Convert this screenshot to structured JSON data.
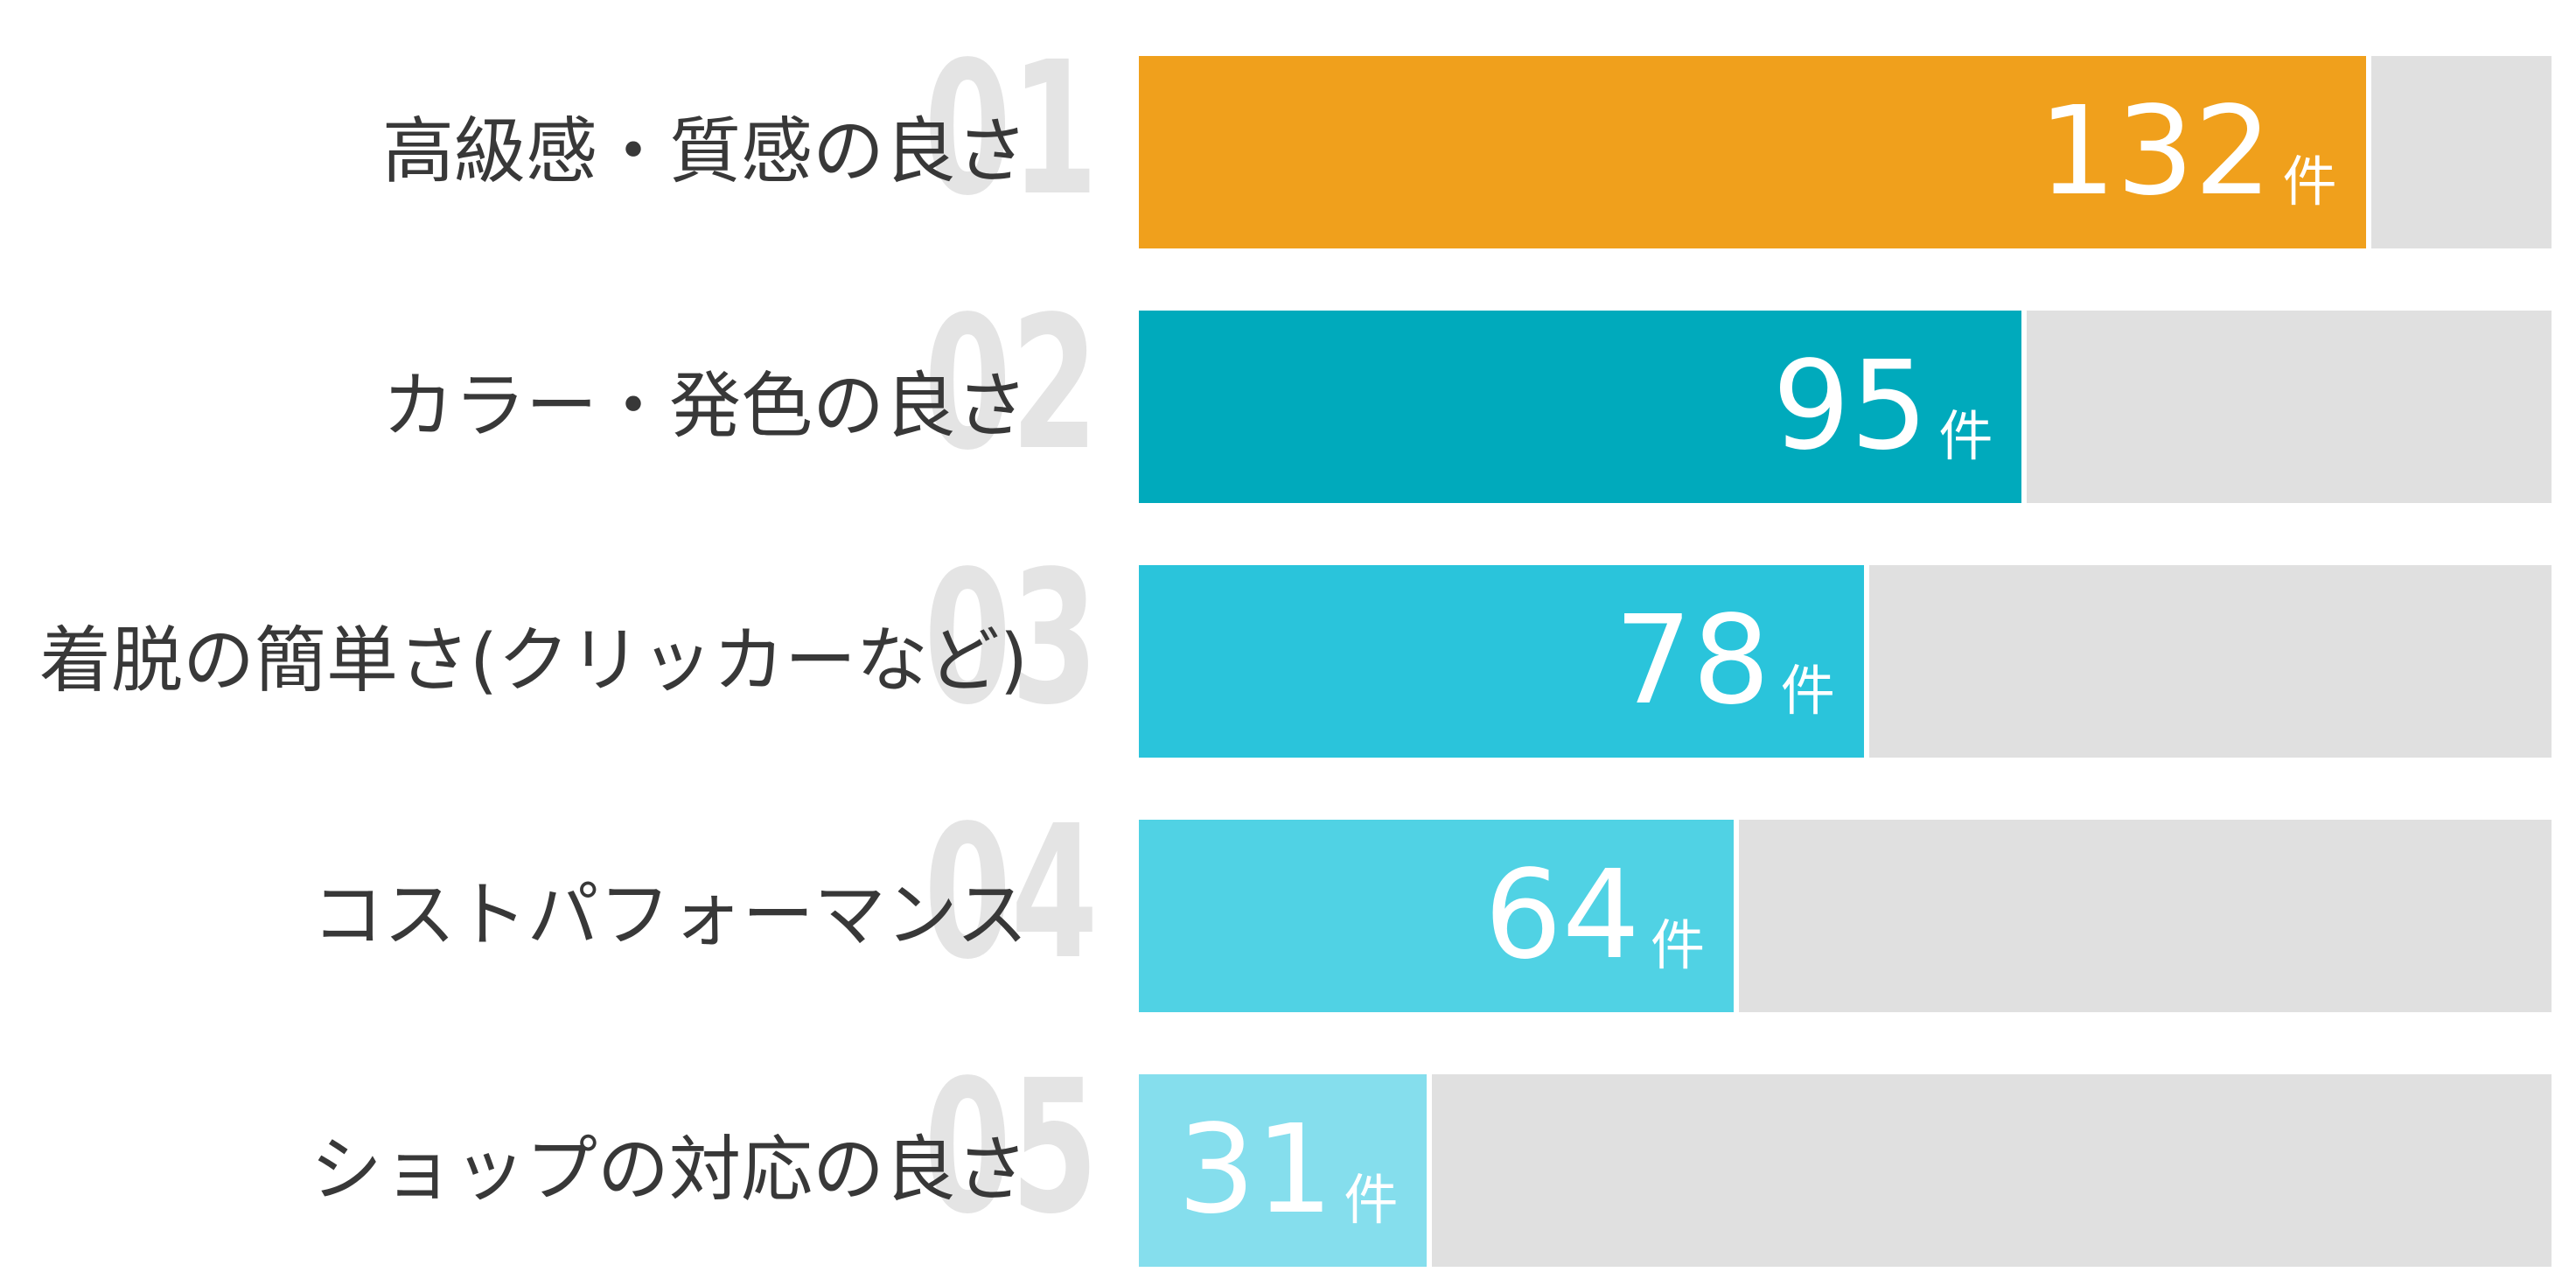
{
  "chart_data": {
    "type": "bar",
    "orientation": "horizontal",
    "title": "",
    "xlabel": "",
    "ylabel": "",
    "xlim": [
      0,
      152
    ],
    "grid": false,
    "legend": false,
    "unit_suffix": "件",
    "categories": [
      "高級感・質感の良さ",
      "カラー・発色の良さ",
      "着脱の簡単さ(クリッカーなど)",
      "コストパフォーマンス",
      "ショップの対応の良さ"
    ],
    "values": [
      132,
      95,
      78,
      64,
      31
    ],
    "colors": {
      "track": "#E0E0E0",
      "rank_number": "#E4E4E4",
      "label_text": "#383838",
      "value_text": "#FFFFFF"
    },
    "items": [
      {
        "rank": "01",
        "label": "高級感・質感の良さ",
        "value": 132,
        "unit": "件",
        "color": "#F0A01C"
      },
      {
        "rank": "02",
        "label": "カラー・発色の良さ",
        "value": 95,
        "unit": "件",
        "color": "#00AABC"
      },
      {
        "rank": "03",
        "label": "着脱の簡単さ(クリッカーなど)",
        "value": 78,
        "unit": "件",
        "color": "#2AC4DB"
      },
      {
        "rank": "04",
        "label": "コストパフォーマンス",
        "value": 64,
        "unit": "件",
        "color": "#50D2E4"
      },
      {
        "rank": "05",
        "label": "ショップの対応の良さ",
        "value": 31,
        "unit": "件",
        "color": "#85DEED"
      }
    ]
  }
}
